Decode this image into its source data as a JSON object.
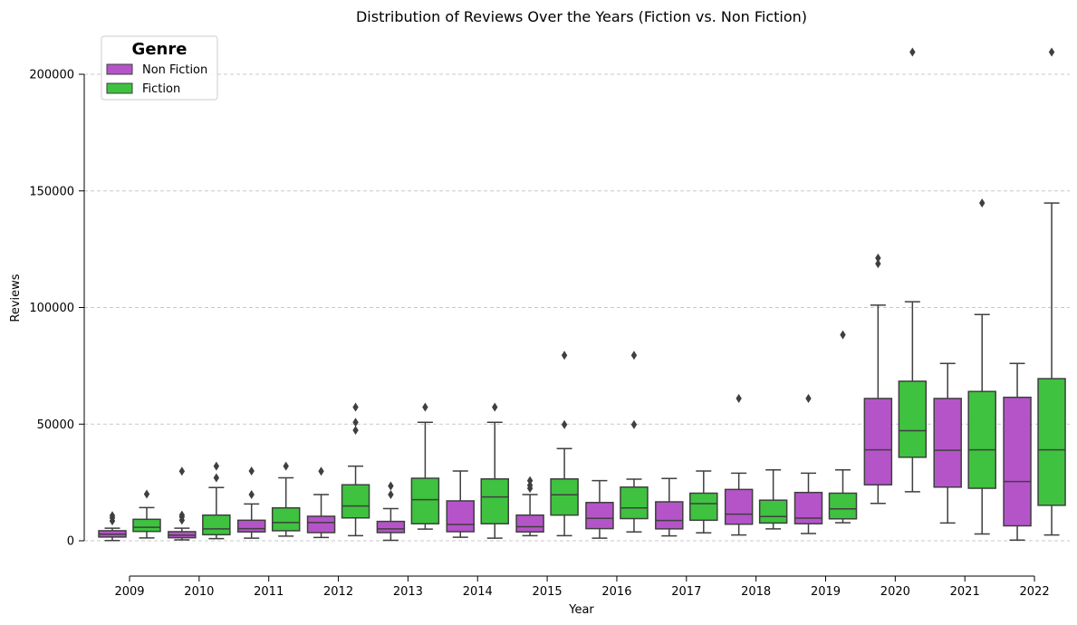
{
  "chart_data": {
    "type": "box",
    "title": "Distribution of Reviews Over the Years (Fiction vs. Non Fiction)",
    "xlabel": "Year",
    "ylabel": "Reviews",
    "ylim": [
      -15000,
      215000
    ],
    "yticks": [
      0,
      50000,
      100000,
      150000,
      200000
    ],
    "grid": "y-dashed",
    "legend": {
      "title": "Genre",
      "placement": "top-left"
    },
    "categories": [
      "2009",
      "2010",
      "2011",
      "2012",
      "2013",
      "2014",
      "2015",
      "2016",
      "2017",
      "2018",
      "2019",
      "2020",
      "2021",
      "2022"
    ],
    "series": [
      {
        "name": "Non Fiction",
        "color": "#b554c9",
        "boxes": [
          {
            "whislo": 100,
            "q1": 1600,
            "med": 2800,
            "q3": 4300,
            "whishi": 5400,
            "fliers": [
              8500,
              9800,
              10800
            ]
          },
          {
            "whislo": 400,
            "q1": 1300,
            "med": 2400,
            "q3": 3900,
            "whishi": 5400,
            "fliers": [
              8800,
              10200,
              11000,
              29800
            ]
          },
          {
            "whislo": 1100,
            "q1": 3800,
            "med": 5200,
            "q3": 8800,
            "whishi": 15800,
            "fliers": [
              19800,
              29900
            ]
          },
          {
            "whislo": 1400,
            "q1": 3500,
            "med": 7800,
            "q3": 10500,
            "whishi": 19800,
            "fliers": [
              29800
            ]
          },
          {
            "whislo": 200,
            "q1": 3500,
            "med": 5100,
            "q3": 8300,
            "whishi": 13800,
            "fliers": [
              19800,
              23500
            ]
          },
          {
            "whislo": 1500,
            "q1": 3900,
            "med": 7000,
            "q3": 17100,
            "whishi": 29900,
            "fliers": []
          },
          {
            "whislo": 2200,
            "q1": 3800,
            "med": 6000,
            "q3": 11000,
            "whishi": 19800,
            "fliers": [
              22500,
              23800,
              25800
            ]
          },
          {
            "whislo": 1100,
            "q1": 5200,
            "med": 9600,
            "q3": 16400,
            "whishi": 25800,
            "fliers": []
          },
          {
            "whislo": 2100,
            "q1": 5100,
            "med": 8700,
            "q3": 16700,
            "whishi": 26700,
            "fliers": []
          },
          {
            "whislo": 2500,
            "q1": 7100,
            "med": 11400,
            "q3": 22000,
            "whishi": 29000,
            "fliers": [
              61000
            ]
          },
          {
            "whislo": 3100,
            "q1": 7300,
            "med": 9700,
            "q3": 20700,
            "whishi": 29000,
            "fliers": [
              61000
            ]
          },
          {
            "whislo": 16000,
            "q1": 24000,
            "med": 39000,
            "q3": 61000,
            "whishi": 101000,
            "fliers": [
              118800,
              121200
            ]
          },
          {
            "whislo": 7600,
            "q1": 23000,
            "med": 38800,
            "q3": 61000,
            "whishi": 76000,
            "fliers": []
          },
          {
            "whislo": 300,
            "q1": 6400,
            "med": 25400,
            "q3": 61500,
            "whishi": 76000,
            "fliers": []
          }
        ]
      },
      {
        "name": "Fiction",
        "color": "#3fc23f",
        "boxes": [
          {
            "whislo": 1200,
            "q1": 4000,
            "med": 5800,
            "q3": 9200,
            "whishi": 14200,
            "fliers": [
              20000
            ]
          },
          {
            "whislo": 900,
            "q1": 2600,
            "med": 5100,
            "q3": 11000,
            "whishi": 22800,
            "fliers": [
              27000,
              32000
            ]
          },
          {
            "whislo": 2000,
            "q1": 4300,
            "med": 7800,
            "q3": 14100,
            "whishi": 27000,
            "fliers": [
              32000
            ]
          },
          {
            "whislo": 2200,
            "q1": 9800,
            "med": 14900,
            "q3": 24000,
            "whishi": 32000,
            "fliers": [
              47400,
              50800,
              57300
            ]
          },
          {
            "whislo": 5000,
            "q1": 7300,
            "med": 17600,
            "q3": 26800,
            "whishi": 50800,
            "fliers": [
              57300
            ]
          },
          {
            "whislo": 1100,
            "q1": 7300,
            "med": 18800,
            "q3": 26500,
            "whishi": 50800,
            "fliers": [
              57300
            ]
          },
          {
            "whislo": 2200,
            "q1": 11000,
            "med": 19700,
            "q3": 26500,
            "whishi": 39500,
            "fliers": [
              49800,
              79500
            ]
          },
          {
            "whislo": 3800,
            "q1": 9500,
            "med": 14100,
            "q3": 23000,
            "whishi": 26400,
            "fliers": [
              49800,
              79500
            ]
          },
          {
            "whislo": 3400,
            "q1": 8800,
            "med": 15900,
            "q3": 20400,
            "whishi": 29900,
            "fliers": []
          },
          {
            "whislo": 5100,
            "q1": 7600,
            "med": 10400,
            "q3": 17400,
            "whishi": 30400,
            "fliers": []
          },
          {
            "whislo": 7700,
            "q1": 9400,
            "med": 13700,
            "q3": 20400,
            "whishi": 30400,
            "fliers": [
              88300
            ]
          },
          {
            "whislo": 21000,
            "q1": 35800,
            "med": 47200,
            "q3": 68400,
            "whishi": 102500,
            "fliers": [
              209500
            ]
          },
          {
            "whislo": 2900,
            "q1": 22500,
            "med": 39000,
            "q3": 64000,
            "whishi": 97000,
            "fliers": [
              144800
            ]
          },
          {
            "whislo": 2500,
            "q1": 15200,
            "med": 39000,
            "q3": 69500,
            "whishi": 144800,
            "fliers": [
              209500
            ]
          }
        ]
      }
    ]
  }
}
